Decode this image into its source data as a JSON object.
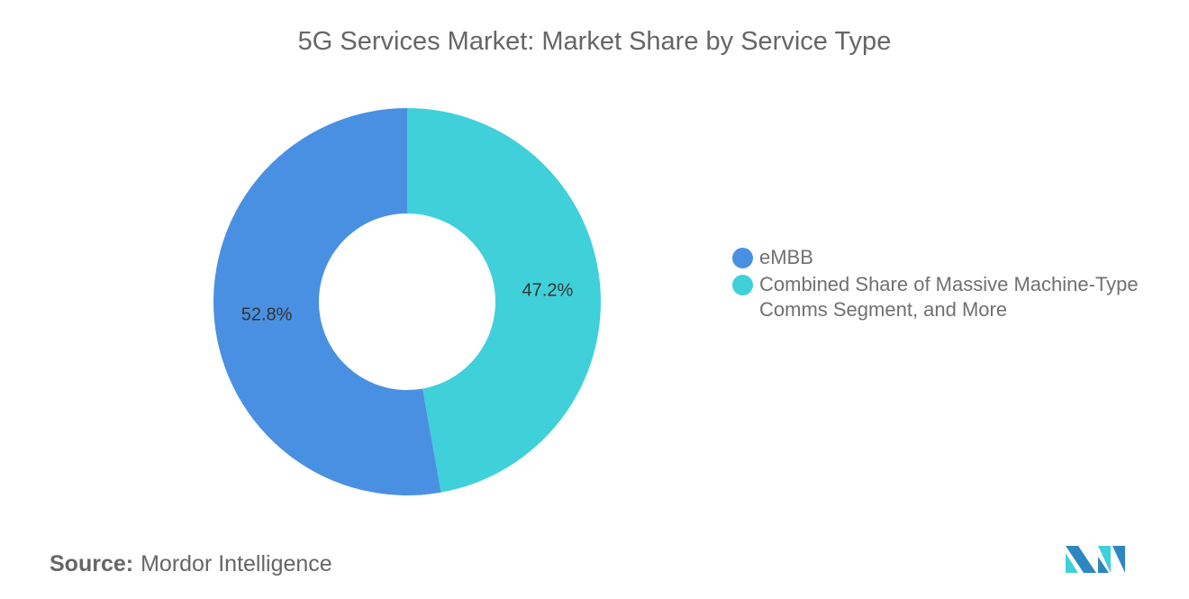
{
  "chart_data": {
    "type": "pie",
    "donut": true,
    "title": "5G Services Market: Market Share by Service Type",
    "slices": [
      {
        "name": "Combined Share of Massive Machine-Type Comms Segment, and More",
        "value": 47.2,
        "label": "47.2%",
        "color": "#40D0DA"
      },
      {
        "name": "eMBB",
        "value": 52.8,
        "label": "52.8%",
        "color": "#4A90E2"
      }
    ],
    "legend_placement": "right",
    "legend": [
      {
        "label": "eMBB",
        "color": "#4A90E2"
      },
      {
        "label": "Combined Share of Massive Machine-Type Comms Segment, and More",
        "color": "#40D0DA"
      }
    ]
  },
  "source": {
    "prefix": "Source:",
    "text": "Mordor Intelligence"
  },
  "logo": {
    "colors": [
      "#2E86C1",
      "#40D0DA"
    ]
  }
}
